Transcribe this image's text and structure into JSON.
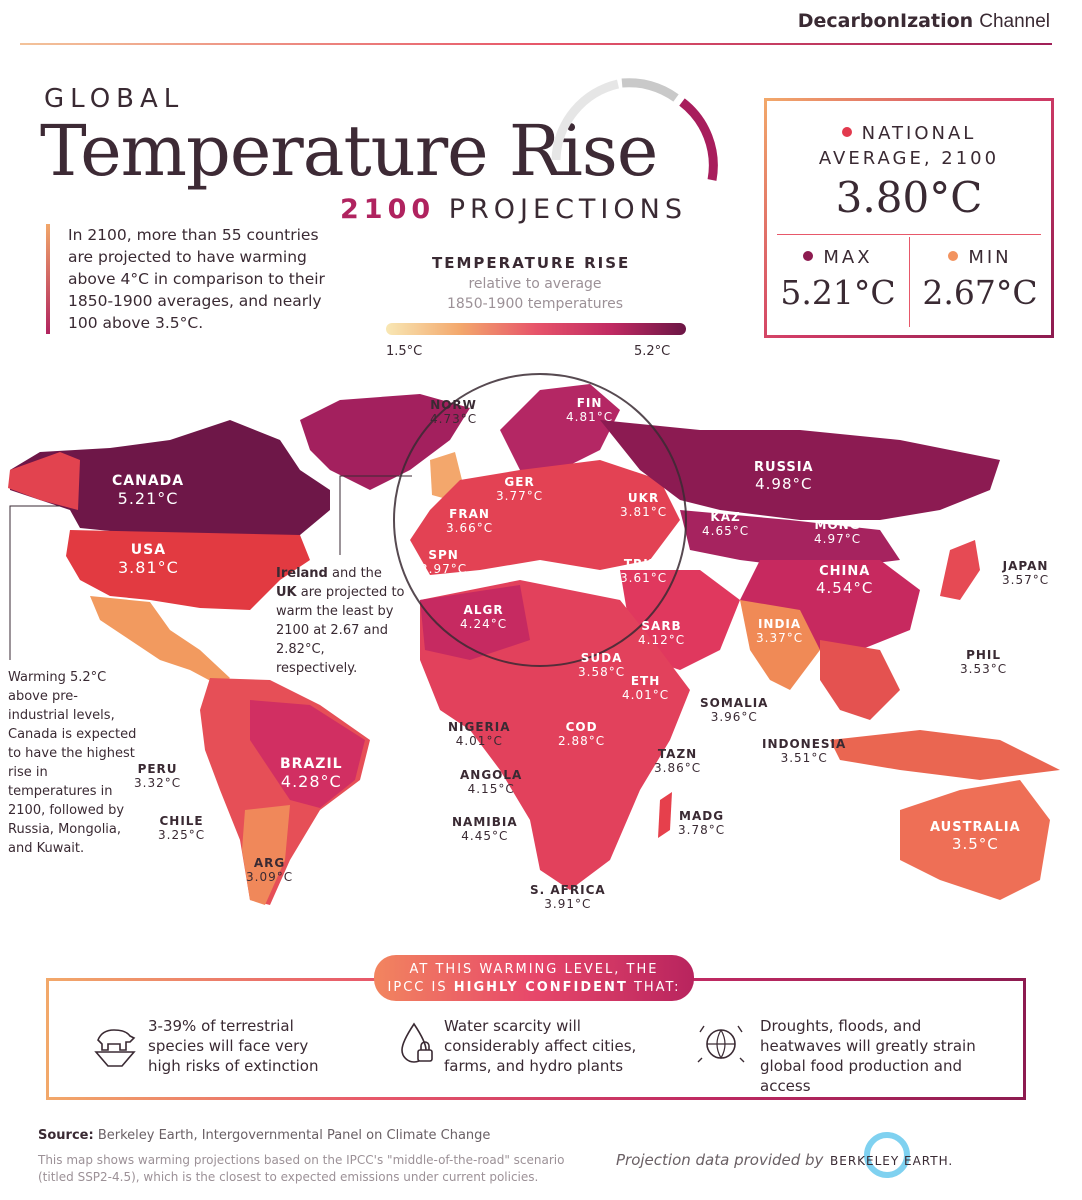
{
  "brand": {
    "bold": "Decarbon",
    "mark": "Ization",
    "light": "Channel"
  },
  "header": {
    "kicker": "GLOBAL",
    "title": "Temperature Rise",
    "sub_year": "2100",
    "sub_word": "PROJECTIONS"
  },
  "intro": "In 2100, more than 55 countries are projected to have warming above 4°C in comparison to their 1850-1900 averages, and nearly 100 above 3.5°C.",
  "legend": {
    "title": "TEMPERATURE RISE",
    "subtitle_1": "relative to average",
    "subtitle_2": "1850-1900 temperatures",
    "min": "1.5°C",
    "max": "5.2°C",
    "colors": {
      "low": "#f8e7b4",
      "mid": "#e7546a",
      "high": "#6b1645"
    }
  },
  "stats": {
    "national_label_1": "NATIONAL",
    "national_label_2": "AVERAGE, 2100",
    "national_value": "3.80°C",
    "max_label": "MAX",
    "max_value": "5.21°C",
    "min_label": "MIN",
    "min_value": "2.67°C",
    "colors": {
      "national": "#e23a4e",
      "max": "#8d1b50",
      "min": "#f2935f"
    }
  },
  "countries": {
    "canada": {
      "name": "CANADA",
      "value": "5.21°C"
    },
    "usa": {
      "name": "USA",
      "value": "3.81°C"
    },
    "brazil": {
      "name": "BRAZIL",
      "value": "4.28°C"
    },
    "peru": {
      "name": "PERU",
      "value": "3.32°C"
    },
    "chile": {
      "name": "CHILE",
      "value": "3.25°C"
    },
    "arg": {
      "name": "ARG",
      "value": "3.09°C"
    },
    "norw": {
      "name": "NORW",
      "value": "4.73°C"
    },
    "fin": {
      "name": "FIN",
      "value": "4.81°C"
    },
    "ger": {
      "name": "GER",
      "value": "3.77°C"
    },
    "fran": {
      "name": "FRAN",
      "value": "3.66°C"
    },
    "ukr": {
      "name": "UKR",
      "value": "3.81°C"
    },
    "spn": {
      "name": "SPN",
      "value": "3.97°C"
    },
    "trky": {
      "name": "TRKY",
      "value": "3.61°C"
    },
    "algr": {
      "name": "ALGR",
      "value": "4.24°C"
    },
    "russia": {
      "name": "RUSSIA",
      "value": "4.98°C"
    },
    "kaz": {
      "name": "KAZ",
      "value": "4.65°C"
    },
    "mong": {
      "name": "MONG",
      "value": "4.97°C"
    },
    "china": {
      "name": "CHINA",
      "value": "4.54°C"
    },
    "japan": {
      "name": "JAPAN",
      "value": "3.57°C"
    },
    "india": {
      "name": "INDIA",
      "value": "3.37°C"
    },
    "phil": {
      "name": "PHIL",
      "value": "3.53°C"
    },
    "indonesia": {
      "name": "INDONESIA",
      "value": "3.51°C"
    },
    "australia": {
      "name": "AUSTRALIA",
      "value": "3.5°C"
    },
    "sarb": {
      "name": "SARB",
      "value": "4.12°C"
    },
    "suda": {
      "name": "SUDA",
      "value": "3.58°C"
    },
    "eth": {
      "name": "ETH",
      "value": "4.01°C"
    },
    "somalia": {
      "name": "SOMALIA",
      "value": "3.96°C"
    },
    "nigeria": {
      "name": "NIGERIA",
      "value": "4.01°C"
    },
    "cod": {
      "name": "COD",
      "value": "2.88°C"
    },
    "angola": {
      "name": "ANGOLA",
      "value": "4.15°C"
    },
    "tazn": {
      "name": "TAZN",
      "value": "3.86°C"
    },
    "namibia": {
      "name": "NAMIBIA",
      "value": "4.45°C"
    },
    "madg": {
      "name": "MADG",
      "value": "3.78°C"
    },
    "s_africa": {
      "name": "S. AFRICA",
      "value": "3.91°C"
    }
  },
  "notes": {
    "ireland_uk_1": "Ireland",
    "ireland_uk_2": "and the",
    "ireland_uk_3": "UK",
    "ireland_uk_rest": "are projected to warm the least by 2100 at 2.67 and 2.82°C, respectively.",
    "canada_note": "Warming 5.2°C above pre-industrial levels, Canada is expected to have the highest rise in temperatures in 2100, followed by Russia, Mongolia, and Kuwait."
  },
  "ipcc": {
    "tag_1": "AT THIS WARMING LEVEL, THE",
    "tag_2a": "IPCC IS",
    "tag_2b": "HIGHLY CONFIDENT",
    "tag_2c": "THAT:",
    "facts": [
      {
        "text": "3-39% of terrestrial species will face very high risks of extinction",
        "icon": "polar-bear-icon"
      },
      {
        "text": "Water scarcity will considerably affect cities, farms, and hydro plants",
        "icon": "water-drop-lock-icon"
      },
      {
        "text": "Droughts, floods, and heatwaves will greatly strain global food production and access",
        "icon": "globe-weather-icon"
      }
    ]
  },
  "footer": {
    "source_label": "Source:",
    "source_text": "Berkeley Earth, Intergovernmental Panel on Climate Change",
    "method": "This map shows warming projections based on the IPCC's \"middle-of-the-road\" scenario (titled SSP2-4.5), which is the closest to expected emissions under current policies.",
    "provided": "Projection data provided by",
    "logo_text": "BERKELEY EARTH."
  }
}
